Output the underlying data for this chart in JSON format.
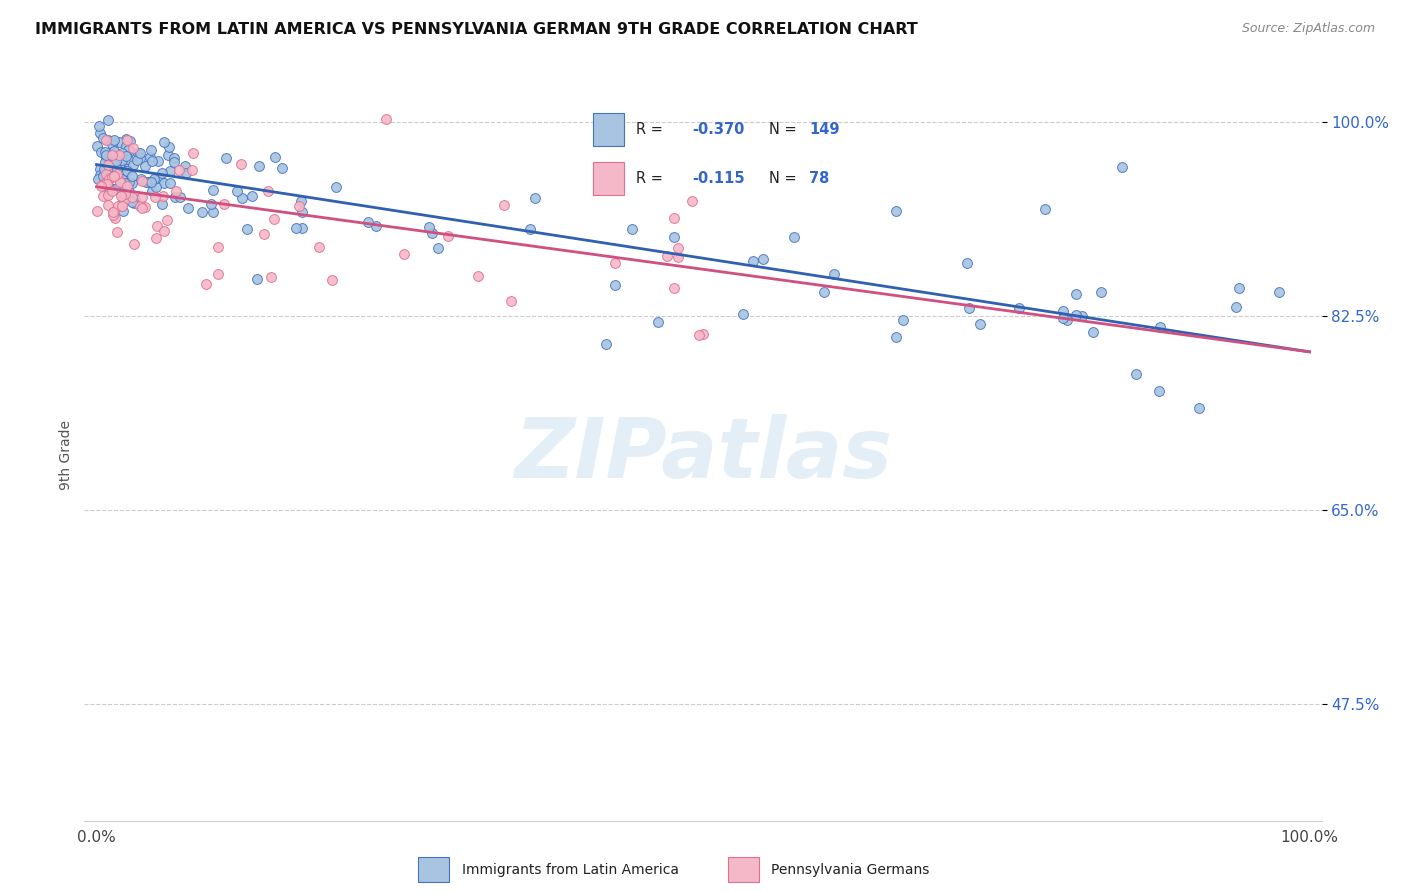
{
  "title": "IMMIGRANTS FROM LATIN AMERICA VS PENNSYLVANIA GERMAN 9TH GRADE CORRELATION CHART",
  "source": "Source: ZipAtlas.com",
  "ylabel": "9th Grade",
  "ytick_vals": [
    0.475,
    0.65,
    0.825,
    1.0
  ],
  "ytick_labels": [
    "47.5%",
    "65.0%",
    "82.5%",
    "100.0%"
  ],
  "legend_label1": "Immigrants from Latin America",
  "legend_label2": "Pennsylvania Germans",
  "color_blue_fill": "#a8c4e0",
  "color_blue_edge": "#4472c4",
  "color_pink_fill": "#f4b8c8",
  "color_pink_edge": "#e07090",
  "color_blue_line": "#3060b0",
  "color_pink_line": "#d05080",
  "color_blue_text": "#3060b0",
  "color_rn_text": "#3366cc",
  "background_color": "#ffffff",
  "grid_color": "#cccccc",
  "watermark_text": "ZIPatlas",
  "watermark_color": "#c8dff0",
  "blue_line_x0": 0.0,
  "blue_line_x1": 1.0,
  "blue_line_y0": 0.962,
  "blue_line_y1": 0.793,
  "pink_line_x0": 0.0,
  "pink_line_x1": 1.0,
  "pink_line_y0": 0.942,
  "pink_line_y1": 0.793,
  "xmin": 0.0,
  "xmax": 1.0,
  "ymin": 0.37,
  "ymax": 1.03
}
